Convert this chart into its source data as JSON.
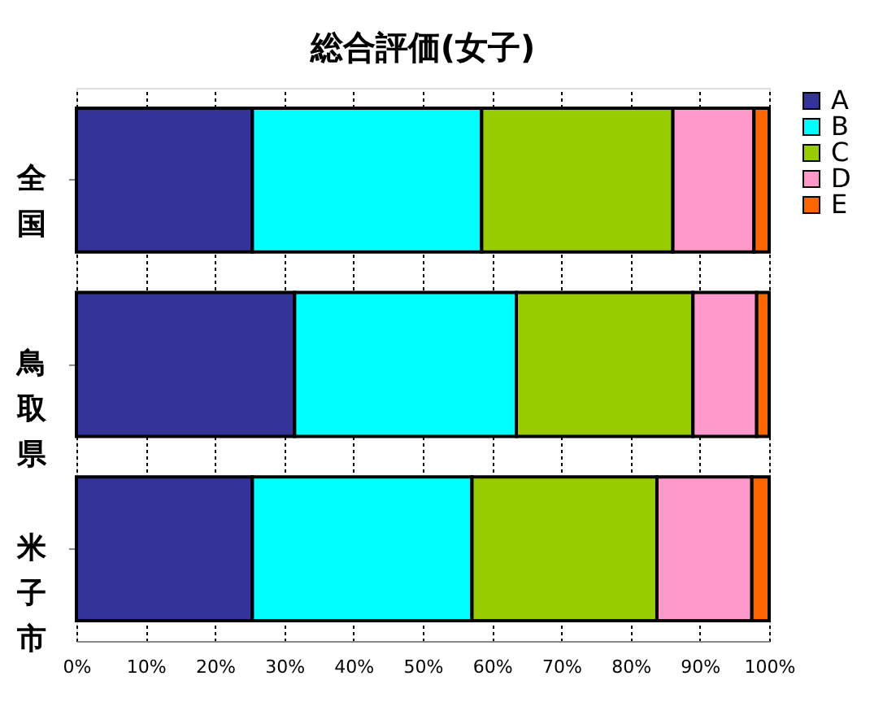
{
  "chart_data": {
    "type": "bar",
    "orientation": "horizontal",
    "stacked": true,
    "title": "総合評価(女子)",
    "categories": [
      "全国",
      "鳥取県",
      "米子市"
    ],
    "series": [
      {
        "name": "A",
        "color": "#333399",
        "values": [
          25.4,
          31.5,
          25.4
        ]
      },
      {
        "name": "B",
        "color": "#00ffff",
        "values": [
          33.1,
          32.0,
          31.7
        ]
      },
      {
        "name": "C",
        "color": "#99cc00",
        "values": [
          27.6,
          25.5,
          26.7
        ]
      },
      {
        "name": "D",
        "color": "#ff99cc",
        "values": [
          11.7,
          9.2,
          13.7
        ]
      },
      {
        "name": "E",
        "color": "#ff6600",
        "values": [
          2.2,
          1.8,
          2.5
        ]
      }
    ],
    "xlim": [
      0,
      100
    ],
    "xticks": [
      {
        "value": 0,
        "label": "0%"
      },
      {
        "value": 10,
        "label": "10%"
      },
      {
        "value": 20,
        "label": "20%"
      },
      {
        "value": 30,
        "label": "30%"
      },
      {
        "value": 40,
        "label": "40%"
      },
      {
        "value": 50,
        "label": "50%"
      },
      {
        "value": 60,
        "label": "60%"
      },
      {
        "value": 70,
        "label": "70%"
      },
      {
        "value": 80,
        "label": "80%"
      },
      {
        "value": 90,
        "label": "90%"
      },
      {
        "value": 100,
        "label": "100%"
      }
    ],
    "grid": "x",
    "legend": "right"
  }
}
